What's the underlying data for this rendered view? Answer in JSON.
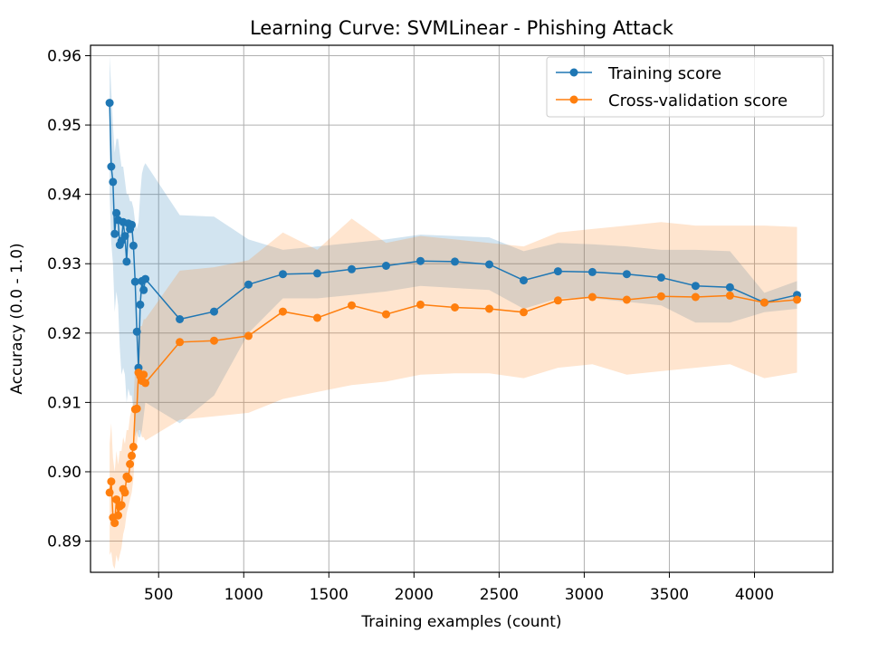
{
  "chart_data": {
    "type": "line",
    "title": "Learning Curve: SVMLinear - Phishing Attack",
    "xlabel": "Training examples (count)",
    "ylabel": "Accuracy (0.0 - 1.0)",
    "xlim": [
      100,
      4460
    ],
    "ylim": [
      0.8855,
      0.9615
    ],
    "xticks": [
      500,
      1000,
      1500,
      2000,
      2500,
      3000,
      3500,
      4000
    ],
    "yticks": [
      0.89,
      0.9,
      0.91,
      0.92,
      0.93,
      0.94,
      0.95,
      0.96
    ],
    "grid": true,
    "legend_position": "top-right",
    "x": [
      212,
      222,
      232,
      242,
      252,
      262,
      272,
      282,
      292,
      302,
      312,
      322,
      332,
      342,
      352,
      362,
      372,
      382,
      392,
      402,
      412,
      422,
      624,
      826,
      1028,
      1230,
      1432,
      1634,
      1836,
      2038,
      2240,
      2442,
      2644,
      2846,
      3048,
      3250,
      3452,
      3654,
      3856,
      4058,
      4250
    ],
    "series": [
      {
        "name": "Training score",
        "color": "#1f77b4",
        "values": [
          0.9532,
          0.944,
          0.9418,
          0.9343,
          0.9373,
          0.9363,
          0.9327,
          0.9333,
          0.936,
          0.934,
          0.9303,
          0.9358,
          0.935,
          0.9356,
          0.9326,
          0.9274,
          0.9202,
          0.915,
          0.9241,
          0.9275,
          0.9262,
          0.9278,
          0.922,
          0.9231,
          0.927,
          0.9285,
          0.9286,
          0.9292,
          0.9297,
          0.9304,
          0.9303,
          0.9299,
          0.9276,
          0.9289,
          0.9288,
          0.9285,
          0.928,
          0.9268,
          0.9266,
          0.9244,
          0.9255
        ],
        "lower": [
          0.94,
          0.933,
          0.93,
          0.923,
          0.926,
          0.924,
          0.918,
          0.914,
          0.915,
          0.914,
          0.91,
          0.912,
          0.911,
          0.911,
          0.909,
          0.905,
          0.906,
          0.905,
          0.905,
          0.906,
          0.908,
          0.91,
          0.907,
          0.911,
          0.92,
          0.925,
          0.925,
          0.9255,
          0.926,
          0.9268,
          0.9265,
          0.9262,
          0.9235,
          0.925,
          0.925,
          0.9245,
          0.924,
          0.9215,
          0.9215,
          0.923,
          0.9235
        ],
        "upper": [
          0.96,
          0.955,
          0.95,
          0.946,
          0.948,
          0.948,
          0.946,
          0.944,
          0.944,
          0.942,
          0.94,
          0.94,
          0.939,
          0.939,
          0.938,
          0.936,
          0.935,
          0.936,
          0.94,
          0.943,
          0.944,
          0.9445,
          0.937,
          0.9368,
          0.9335,
          0.932,
          0.9325,
          0.933,
          0.9335,
          0.9342,
          0.934,
          0.9338,
          0.9318,
          0.933,
          0.9328,
          0.9325,
          0.932,
          0.932,
          0.9318,
          0.9258,
          0.9275
        ]
      },
      {
        "name": "Cross-validation score",
        "color": "#ff7f0e",
        "values": [
          0.897,
          0.8986,
          0.8934,
          0.8926,
          0.896,
          0.8937,
          0.895,
          0.8952,
          0.8975,
          0.897,
          0.8993,
          0.899,
          0.9011,
          0.9023,
          0.9036,
          0.909,
          0.9091,
          0.9143,
          0.9138,
          0.9131,
          0.914,
          0.9128,
          0.9187,
          0.9189,
          0.9196,
          0.9231,
          0.9222,
          0.924,
          0.9227,
          0.9241,
          0.9237,
          0.9235,
          0.923,
          0.9247,
          0.9252,
          0.9248,
          0.9253,
          0.9252,
          0.9254,
          0.9244,
          0.9248
        ],
        "lower": [
          0.888,
          0.8885,
          0.8865,
          0.886,
          0.888,
          0.887,
          0.888,
          0.889,
          0.891,
          0.892,
          0.894,
          0.895,
          0.896,
          0.897,
          0.899,
          0.904,
          0.904,
          0.906,
          0.906,
          0.905,
          0.905,
          0.9045,
          0.9075,
          0.908,
          0.9085,
          0.9105,
          0.9115,
          0.9125,
          0.913,
          0.914,
          0.9142,
          0.9142,
          0.9135,
          0.915,
          0.9155,
          0.914,
          0.9145,
          0.915,
          0.9155,
          0.9135,
          0.9143
        ],
        "upper": [
          0.904,
          0.907,
          0.902,
          0.9,
          0.903,
          0.901,
          0.903,
          0.903,
          0.905,
          0.904,
          0.906,
          0.906,
          0.908,
          0.909,
          0.91,
          0.915,
          0.915,
          0.92,
          0.921,
          0.921,
          0.922,
          0.922,
          0.929,
          0.9295,
          0.9305,
          0.9345,
          0.932,
          0.9365,
          0.933,
          0.934,
          0.9335,
          0.933,
          0.9325,
          0.9345,
          0.935,
          0.9355,
          0.936,
          0.9355,
          0.9355,
          0.9355,
          0.9353
        ]
      }
    ]
  }
}
